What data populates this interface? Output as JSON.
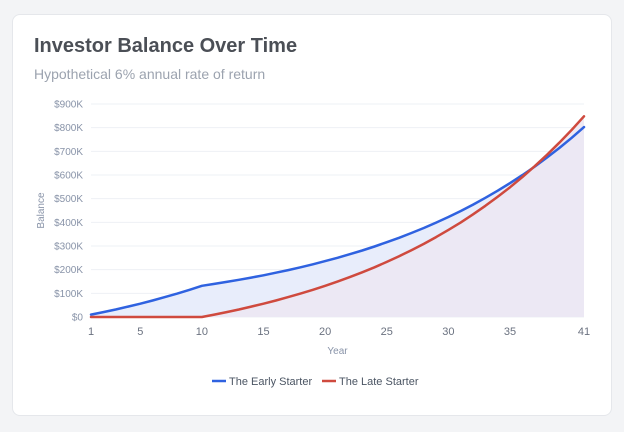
{
  "card": {
    "title": "Investor Balance Over Time",
    "subtitle": "Hypothetical 6% annual rate of return"
  },
  "chart_data": {
    "type": "area",
    "xlabel": "Year",
    "ylabel": "Balance",
    "xlim": [
      1,
      41
    ],
    "ylim": [
      0,
      900000
    ],
    "x_ticks": [
      1,
      5,
      10,
      15,
      20,
      25,
      30,
      35,
      41
    ],
    "x_tick_labels": [
      "1",
      "5",
      "10",
      "15",
      "20",
      "25",
      "30",
      "35",
      "41"
    ],
    "y_ticks": [
      0,
      100000,
      200000,
      300000,
      400000,
      500000,
      600000,
      700000,
      800000,
      900000
    ],
    "y_tick_labels": [
      "$0",
      "$100K",
      "$200K",
      "$300K",
      "$400K",
      "$500K",
      "$600K",
      "$700K",
      "$800K",
      "$900K"
    ],
    "grid": true,
    "legend_position": "bottom",
    "series": [
      {
        "name": "The Early Starter",
        "color": "#2f62e0",
        "fill": "#e8edfb",
        "x": [
          1,
          2,
          3,
          4,
          5,
          6,
          7,
          8,
          9,
          10,
          11,
          12,
          13,
          14,
          15,
          16,
          17,
          18,
          19,
          20,
          21,
          22,
          23,
          24,
          25,
          26,
          27,
          28,
          29,
          30,
          31,
          32,
          33,
          34,
          35,
          36,
          37,
          38,
          39,
          40,
          41
        ],
        "values": [
          10000,
          20600,
          31836,
          43746,
          56371,
          69753,
          83938,
          98975,
          114913,
          131808,
          139716,
          148099,
          156985,
          166404,
          176388,
          186972,
          198190,
          210081,
          222686,
          236048,
          250211,
          265223,
          281137,
          298005,
          315885,
          334838,
          354929,
          376224,
          398798,
          422726,
          448089,
          474975,
          503473,
          533682,
          565702,
          599644,
          635623,
          673760,
          714186,
          757037,
          802459
        ]
      },
      {
        "name": "The Late Starter",
        "color": "#cf4a3e",
        "fill": "#ece6f2",
        "x": [
          1,
          2,
          3,
          4,
          5,
          6,
          7,
          8,
          9,
          10,
          11,
          12,
          13,
          14,
          15,
          16,
          17,
          18,
          19,
          20,
          21,
          22,
          23,
          24,
          25,
          26,
          27,
          28,
          29,
          30,
          31,
          32,
          33,
          34,
          35,
          36,
          37,
          38,
          39,
          40,
          41
        ],
        "values": [
          0,
          0,
          0,
          0,
          0,
          0,
          0,
          0,
          0,
          0,
          10000,
          20600,
          31836,
          43746,
          56371,
          69753,
          83938,
          98975,
          114913,
          131808,
          149717,
          168700,
          188822,
          210151,
          232760,
          256726,
          282129,
          309057,
          337600,
          367856,
          399927,
          433923,
          469958,
          508156,
          548645,
          591564,
          637058,
          685281,
          736398,
          790582,
          848017
        ]
      }
    ]
  }
}
